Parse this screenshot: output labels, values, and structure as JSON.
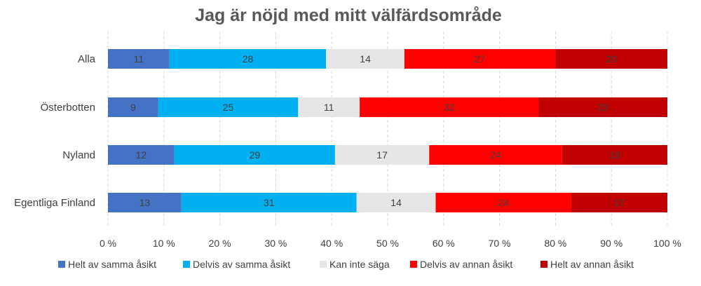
{
  "chart_data": {
    "type": "bar",
    "orientation": "horizontal",
    "stacked": "percent",
    "title": "Jag är nöjd med mitt välfärdsområde",
    "categories": [
      "Alla",
      "Österbotten",
      "Nyland",
      "Egentliga Finland"
    ],
    "series": [
      {
        "name": "Helt av samma åsikt",
        "color": "#4472C4",
        "values": [
          11,
          9,
          12,
          13
        ]
      },
      {
        "name": "Delvis av samma åsikt",
        "color": "#00B0F0",
        "values": [
          28,
          25,
          29,
          31
        ]
      },
      {
        "name": "Kan inte säga",
        "color": "#E6E6E6",
        "values": [
          14,
          11,
          17,
          14
        ]
      },
      {
        "name": "Delvis av annan åsikt",
        "color": "#FF0000",
        "values": [
          27,
          32,
          24,
          24
        ]
      },
      {
        "name": "Helt av annan åsikt",
        "color": "#C00000",
        "values": [
          20,
          23,
          19,
          17
        ]
      }
    ],
    "xlim": [
      0,
      100
    ],
    "xticks": [
      "0 %",
      "10 %",
      "20 %",
      "30 %",
      "40 %",
      "50 %",
      "60 %",
      "70 %",
      "80 %",
      "90 %",
      "100 %"
    ],
    "grid": true,
    "legend_position": "bottom",
    "xlabel": "",
    "ylabel": ""
  }
}
